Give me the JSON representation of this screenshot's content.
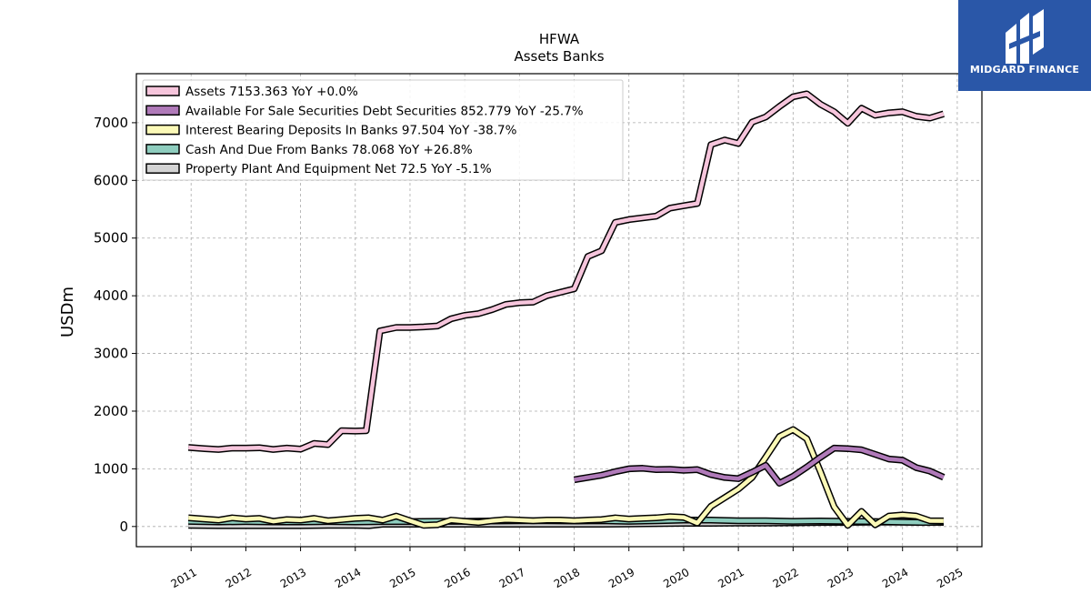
{
  "chart_data": {
    "type": "line",
    "title": "HFWA",
    "subtitle": "Assets Banks",
    "ylabel": "USDm",
    "xlabel": "",
    "ylim": [
      -350,
      7850
    ],
    "xlim": [
      2010.0,
      2025.45
    ],
    "x_ticks": [
      "2011",
      "2012",
      "2013",
      "2014",
      "2015",
      "2016",
      "2017",
      "2018",
      "2019",
      "2020",
      "2021",
      "2022",
      "2023",
      "2024",
      "2025"
    ],
    "y_ticks": [
      "0",
      "1000",
      "2000",
      "3000",
      "4000",
      "5000",
      "6000",
      "7000"
    ],
    "grid": true,
    "legend_position": "top-left",
    "series": [
      {
        "name": "Assets  7153.363 YoY +0.0%",
        "color": "#f6c5dc",
        "points": [
          [
            2010.95,
            1370
          ],
          [
            2011.25,
            1350
          ],
          [
            2011.5,
            1335
          ],
          [
            2011.75,
            1360
          ],
          [
            2012.0,
            1360
          ],
          [
            2012.25,
            1365
          ],
          [
            2012.5,
            1335
          ],
          [
            2012.75,
            1360
          ],
          [
            2013.0,
            1340
          ],
          [
            2013.25,
            1440
          ],
          [
            2013.5,
            1420
          ],
          [
            2013.75,
            1660
          ],
          [
            2014.0,
            1655
          ],
          [
            2014.2,
            1660
          ],
          [
            2014.45,
            3390
          ],
          [
            2014.75,
            3450
          ],
          [
            2015.0,
            3450
          ],
          [
            2015.25,
            3460
          ],
          [
            2015.5,
            3475
          ],
          [
            2015.75,
            3600
          ],
          [
            2016.0,
            3660
          ],
          [
            2016.25,
            3690
          ],
          [
            2016.5,
            3760
          ],
          [
            2016.75,
            3850
          ],
          [
            2017.0,
            3880
          ],
          [
            2017.25,
            3890
          ],
          [
            2017.5,
            4000
          ],
          [
            2017.75,
            4060
          ],
          [
            2018.0,
            4120
          ],
          [
            2018.25,
            4680
          ],
          [
            2018.5,
            4780
          ],
          [
            2018.75,
            5270
          ],
          [
            2019.0,
            5320
          ],
          [
            2019.25,
            5350
          ],
          [
            2019.5,
            5380
          ],
          [
            2019.75,
            5520
          ],
          [
            2020.0,
            5560
          ],
          [
            2020.25,
            5600
          ],
          [
            2020.5,
            6620
          ],
          [
            2020.75,
            6700
          ],
          [
            2021.0,
            6640
          ],
          [
            2021.25,
            7010
          ],
          [
            2021.5,
            7100
          ],
          [
            2021.75,
            7280
          ],
          [
            2022.0,
            7450
          ],
          [
            2022.25,
            7500
          ],
          [
            2022.5,
            7320
          ],
          [
            2022.75,
            7190
          ],
          [
            2023.0,
            6990
          ],
          [
            2023.25,
            7250
          ],
          [
            2023.5,
            7130
          ],
          [
            2023.75,
            7170
          ],
          [
            2024.0,
            7190
          ],
          [
            2024.25,
            7110
          ],
          [
            2024.5,
            7080
          ],
          [
            2024.75,
            7153
          ]
        ]
      },
      {
        "name": "Available For Sale Securities Debt Securities  852.779 YoY -25.7%",
        "color": "#b07ab9",
        "points": [
          [
            2018.0,
            810
          ],
          [
            2018.25,
            850
          ],
          [
            2018.5,
            890
          ],
          [
            2018.75,
            950
          ],
          [
            2019.0,
            1000
          ],
          [
            2019.25,
            1010
          ],
          [
            2019.5,
            985
          ],
          [
            2019.75,
            990
          ],
          [
            2020.0,
            975
          ],
          [
            2020.25,
            985
          ],
          [
            2020.5,
            900
          ],
          [
            2020.75,
            850
          ],
          [
            2021.0,
            830
          ],
          [
            2021.25,
            940
          ],
          [
            2021.5,
            1060
          ],
          [
            2021.75,
            750
          ],
          [
            2022.0,
            870
          ],
          [
            2022.25,
            1030
          ],
          [
            2022.5,
            1200
          ],
          [
            2022.75,
            1360
          ],
          [
            2023.0,
            1350
          ],
          [
            2023.25,
            1330
          ],
          [
            2023.5,
            1250
          ],
          [
            2023.75,
            1170
          ],
          [
            2024.0,
            1150
          ],
          [
            2024.25,
            1020
          ],
          [
            2024.5,
            960
          ],
          [
            2024.75,
            853
          ]
        ]
      },
      {
        "name": "Interest Bearing Deposits In Banks  97.504 YoY -38.7%",
        "color": "#fbf9b7",
        "points": [
          [
            2010.95,
            150
          ],
          [
            2011.25,
            130
          ],
          [
            2011.5,
            110
          ],
          [
            2011.75,
            150
          ],
          [
            2012.0,
            130
          ],
          [
            2012.25,
            140
          ],
          [
            2012.5,
            90
          ],
          [
            2012.75,
            120
          ],
          [
            2013.0,
            110
          ],
          [
            2013.25,
            140
          ],
          [
            2013.5,
            100
          ],
          [
            2013.75,
            120
          ],
          [
            2014.0,
            140
          ],
          [
            2014.25,
            150
          ],
          [
            2014.5,
            110
          ],
          [
            2014.75,
            180
          ],
          [
            2015.0,
            100
          ],
          [
            2015.25,
            20
          ],
          [
            2015.5,
            30
          ],
          [
            2015.75,
            110
          ],
          [
            2016.0,
            90
          ],
          [
            2016.25,
            70
          ],
          [
            2016.5,
            100
          ],
          [
            2016.75,
            120
          ],
          [
            2017.0,
            110
          ],
          [
            2017.25,
            100
          ],
          [
            2017.5,
            110
          ],
          [
            2017.75,
            110
          ],
          [
            2018.0,
            100
          ],
          [
            2018.25,
            110
          ],
          [
            2018.5,
            120
          ],
          [
            2018.75,
            150
          ],
          [
            2019.0,
            130
          ],
          [
            2019.25,
            140
          ],
          [
            2019.5,
            150
          ],
          [
            2019.75,
            170
          ],
          [
            2020.0,
            160
          ],
          [
            2020.25,
            60
          ],
          [
            2020.5,
            350
          ],
          [
            2020.75,
            500
          ],
          [
            2021.0,
            650
          ],
          [
            2021.25,
            850
          ],
          [
            2021.5,
            1200
          ],
          [
            2021.75,
            1560
          ],
          [
            2022.0,
            1680
          ],
          [
            2022.25,
            1520
          ],
          [
            2022.5,
            950
          ],
          [
            2022.75,
            340
          ],
          [
            2023.0,
            20
          ],
          [
            2023.25,
            260
          ],
          [
            2023.5,
            30
          ],
          [
            2023.75,
            180
          ],
          [
            2024.0,
            200
          ],
          [
            2024.25,
            180
          ],
          [
            2024.5,
            100
          ],
          [
            2024.75,
            98
          ]
        ]
      },
      {
        "name": "Cash And Due From Banks  78.068 YoY +26.8%",
        "color": "#8ecdbe",
        "points": [
          [
            2010.95,
            90
          ],
          [
            2011.5,
            80
          ],
          [
            2012.0,
            85
          ],
          [
            2012.5,
            80
          ],
          [
            2013.0,
            80
          ],
          [
            2013.5,
            85
          ],
          [
            2014.0,
            80
          ],
          [
            2014.5,
            85
          ],
          [
            2015.0,
            85
          ],
          [
            2015.5,
            90
          ],
          [
            2016.0,
            90
          ],
          [
            2016.5,
            95
          ],
          [
            2017.0,
            100
          ],
          [
            2017.5,
            100
          ],
          [
            2018.0,
            95
          ],
          [
            2018.5,
            100
          ],
          [
            2019.0,
            90
          ],
          [
            2019.5,
            100
          ],
          [
            2020.0,
            110
          ],
          [
            2020.5,
            110
          ],
          [
            2021.0,
            100
          ],
          [
            2021.5,
            100
          ],
          [
            2022.0,
            90
          ],
          [
            2022.5,
            95
          ],
          [
            2023.0,
            90
          ],
          [
            2023.5,
            85
          ],
          [
            2024.0,
            75
          ],
          [
            2024.5,
            70
          ],
          [
            2024.75,
            78
          ]
        ]
      },
      {
        "name": "Property Plant And Equipment Net  72.5 YoY -5.1%",
        "color": "#d3d3d3",
        "points": [
          [
            2010.95,
            20
          ],
          [
            2011.5,
            15
          ],
          [
            2012.0,
            15
          ],
          [
            2012.5,
            15
          ],
          [
            2013.0,
            15
          ],
          [
            2013.5,
            20
          ],
          [
            2014.0,
            20
          ],
          [
            2014.25,
            15
          ],
          [
            2014.5,
            40
          ],
          [
            2015.0,
            40
          ],
          [
            2015.5,
            40
          ],
          [
            2016.0,
            40
          ],
          [
            2016.5,
            40
          ],
          [
            2017.0,
            40
          ],
          [
            2017.5,
            40
          ],
          [
            2018.0,
            40
          ],
          [
            2018.5,
            40
          ],
          [
            2019.0,
            45
          ],
          [
            2019.5,
            50
          ],
          [
            2020.0,
            55
          ],
          [
            2020.5,
            55
          ],
          [
            2021.0,
            60
          ],
          [
            2021.5,
            60
          ],
          [
            2022.0,
            65
          ],
          [
            2022.5,
            70
          ],
          [
            2023.0,
            72
          ],
          [
            2023.5,
            75
          ],
          [
            2024.0,
            75
          ],
          [
            2024.5,
            74
          ],
          [
            2024.75,
            72
          ]
        ]
      }
    ]
  },
  "logo": {
    "text": "MIDGARD FINANCE",
    "icon": "midgard-logo-icon",
    "bg_color": "#2a57a8"
  }
}
